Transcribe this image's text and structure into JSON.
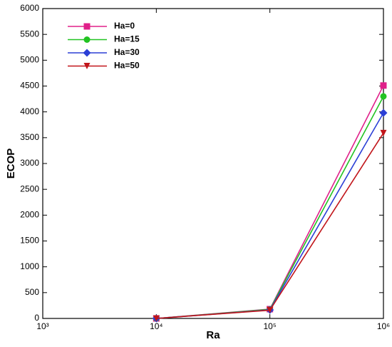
{
  "chart_data": {
    "type": "line",
    "x_label": "Ra",
    "y_label": "ECOP",
    "x": [
      10000,
      100000,
      1000000
    ],
    "xscale": "log",
    "xlim": [
      1000,
      1000000
    ],
    "xticks": [
      {
        "value": 1000,
        "label": "10³"
      },
      {
        "value": 10000,
        "label": "10⁴"
      },
      {
        "value": 100000,
        "label": "10⁵"
      },
      {
        "value": 1000000,
        "label": "10⁶"
      }
    ],
    "ylim": [
      0,
      6000
    ],
    "yticks": [
      0,
      500,
      1000,
      1500,
      2000,
      2500,
      3000,
      3500,
      4000,
      4500,
      5000,
      5500,
      6000
    ],
    "legend": "top-left",
    "series": [
      {
        "name": "Ha=0",
        "color": "#e0208a",
        "marker": "square",
        "values": [
          0,
          180,
          4510
        ]
      },
      {
        "name": "Ha=15",
        "color": "#22c322",
        "marker": "circle",
        "values": [
          0,
          175,
          4300
        ]
      },
      {
        "name": "Ha=30",
        "color": "#2b3fd6",
        "marker": "diamond",
        "values": [
          0,
          165,
          3980
        ]
      },
      {
        "name": "Ha=50",
        "color": "#c1151a",
        "marker": "triangle-down",
        "values": [
          0,
          160,
          3590
        ]
      }
    ]
  }
}
